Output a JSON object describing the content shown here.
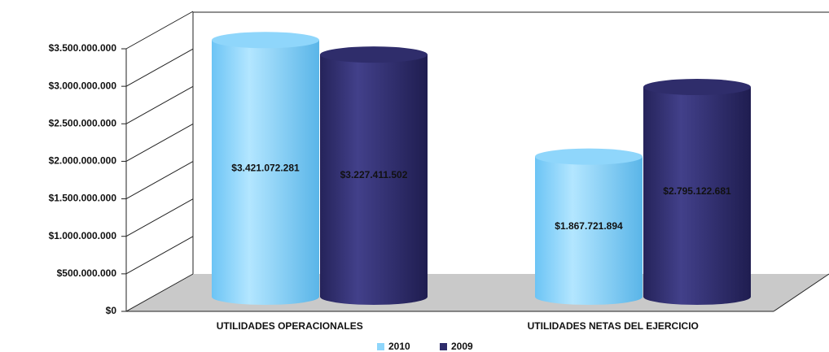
{
  "chart_data": {
    "type": "bar3d",
    "categories": [
      "UTILIDADES OPERACIONALES",
      "UTILIDADES NETAS DEL EJERCICIO"
    ],
    "series": [
      {
        "name": "2010",
        "color": "#8fd6fb",
        "values": [
          3421072281,
          1867721894
        ],
        "value_labels": [
          "$3.421.072.281",
          "$1.867.721.894"
        ]
      },
      {
        "name": "2009",
        "color": "#2f2d6b",
        "values": [
          3227411502,
          2795122681
        ],
        "value_labels": [
          "$3.227.411.502",
          "$2.795.122.681"
        ]
      }
    ],
    "ylim": [
      0,
      3500000000
    ],
    "yticks": [
      {
        "value": 0,
        "label": "$0"
      },
      {
        "value": 500000000,
        "label": "$500.000.000"
      },
      {
        "value": 1000000000,
        "label": "$1.000.000.000"
      },
      {
        "value": 1500000000,
        "label": "$1.500.000.000"
      },
      {
        "value": 2000000000,
        "label": "$2.000.000.000"
      },
      {
        "value": 2500000000,
        "label": "$2.500.000.000"
      },
      {
        "value": 3000000000,
        "label": "$3.000.000.000"
      },
      {
        "value": 3500000000,
        "label": "$3.500.000.000"
      }
    ],
    "grid": true,
    "legend": "bottom"
  }
}
